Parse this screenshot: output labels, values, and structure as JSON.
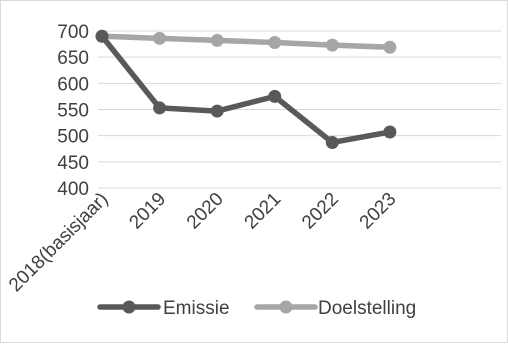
{
  "chart_data": {
    "type": "line",
    "categories": [
      "2018(basisjaar)",
      "2019",
      "2020",
      "2021",
      "2022",
      "2023"
    ],
    "series": [
      {
        "name": "Emissie",
        "values": [
          690,
          553,
          547,
          575,
          487,
          507
        ],
        "color": "#595959"
      },
      {
        "name": "Doelstelling",
        "values": [
          690,
          686,
          682,
          678,
          673,
          669
        ],
        "color": "#a6a6a6"
      }
    ],
    "title": "",
    "xlabel": "",
    "ylabel": "",
    "ylim": [
      400,
      700
    ],
    "yticks": [
      "700",
      "650",
      "600",
      "550",
      "500",
      "450",
      "400"
    ],
    "grid": true,
    "legend_position": "bottom"
  }
}
